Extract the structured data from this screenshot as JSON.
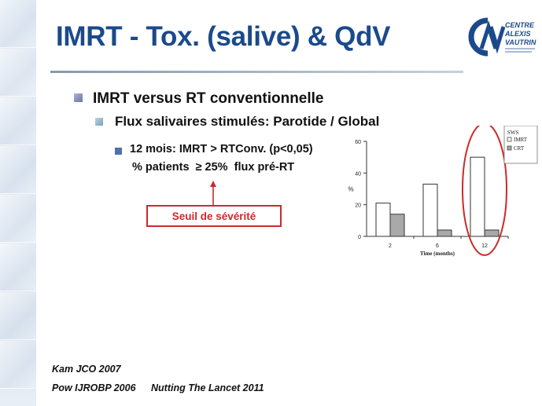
{
  "slide": {
    "title": "IMRT - Tox. (salive) & QdV"
  },
  "logo": {
    "icon": "centre-alexis-vautrin-logo",
    "line1": "CENTRE",
    "line2": "ALEXIS",
    "line3": "VAUTRIN",
    "brand_color": "#1b4a8b"
  },
  "bullets": {
    "level1": "IMRT versus RT conventionnelle",
    "level2": "Flux salivaires stimulés: Parotide / Global",
    "level3": "12 mois: IMRT > RTConv. (p<0,05)",
    "level3_sub": "% patients  ≥ 25%  flux pré-RT"
  },
  "callout": {
    "label": "Seuil de sévérité",
    "color": "#cc2a2a"
  },
  "chart_data": {
    "type": "bar",
    "categories": [
      "2",
      "6",
      "12"
    ],
    "series": [
      {
        "name": "IMRT",
        "values": [
          21,
          33,
          50
        ],
        "color": "#ffffff"
      },
      {
        "name": "CRT",
        "values": [
          14,
          4,
          4
        ],
        "color": "#a9a9a9"
      }
    ],
    "ylim": [
      0,
      60
    ],
    "yticks": [
      "0",
      "20",
      "40",
      "60"
    ],
    "ylabel": "%",
    "xlabel": "Time (months)",
    "legend_title": "SWS",
    "legend_placement": "top-right",
    "highlight_category": "12",
    "highlight_color": "#cc2a2a"
  },
  "references": {
    "ref1": "Kam JCO 2007",
    "ref2": "Pow IJROBP 2006",
    "ref3": "Nutting The Lancet 2011"
  }
}
